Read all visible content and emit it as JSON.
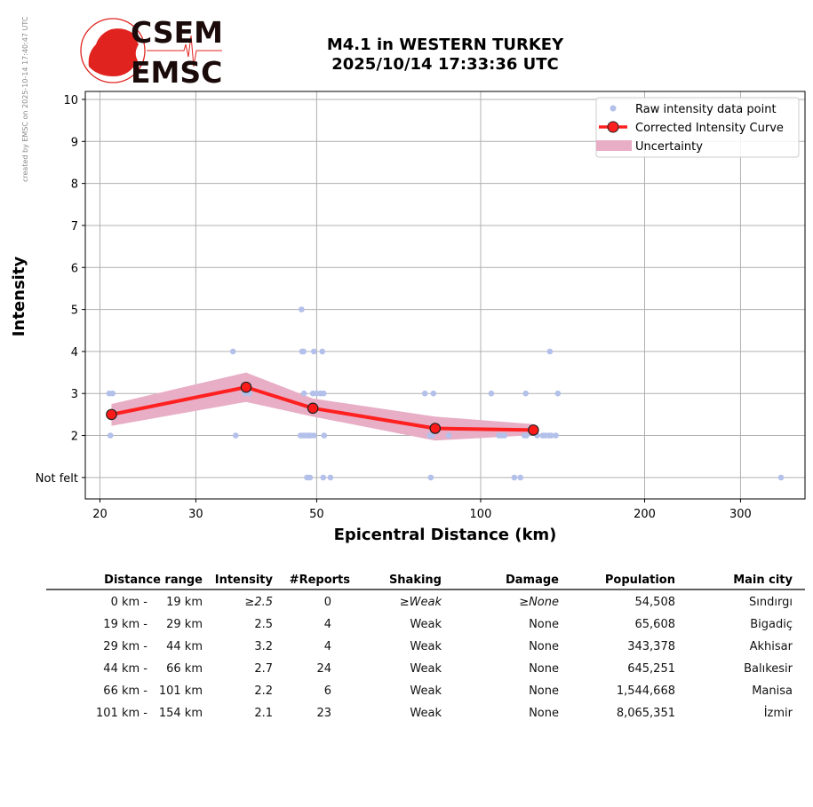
{
  "header": {
    "title_line1": "M4.1 in WESTERN TURKEY",
    "title_line2": "2025/10/14 17:33:36 UTC",
    "logo_text_top": "CSEM",
    "logo_text_bottom": "EMSC",
    "credit": "created by EMSC on 2025-10-14 17:40:47 UTC"
  },
  "colors": {
    "raw": "#b3c0ea",
    "curve": "#ff2020",
    "uncertainty": "#e8aec6",
    "logo": "#e0231f"
  },
  "chart_data": {
    "type": "scatter",
    "xlabel": "Epicentral Distance (km)",
    "ylabel": "Intensity",
    "xscale": "log",
    "xlim": [
      18.8,
      394
    ],
    "ylim": [
      0.49,
      10.19
    ],
    "grid": true,
    "legend_position": "top-right",
    "xticks": [
      {
        "v": 20,
        "label": "20"
      },
      {
        "v": 30,
        "label": "30"
      },
      {
        "v": 50,
        "label": "50"
      },
      {
        "v": 100,
        "label": "100"
      },
      {
        "v": 200,
        "label": "200"
      },
      {
        "v": 300,
        "label": "300"
      }
    ],
    "yticks": [
      {
        "v": 1,
        "label": "Not felt"
      },
      {
        "v": 2,
        "label": "2"
      },
      {
        "v": 3,
        "label": "3"
      },
      {
        "v": 4,
        "label": "4"
      },
      {
        "v": 5,
        "label": "5"
      },
      {
        "v": 6,
        "label": "6"
      },
      {
        "v": 7,
        "label": "7"
      },
      {
        "v": 8,
        "label": "8"
      },
      {
        "v": 9,
        "label": "9"
      },
      {
        "v": 10,
        "label": "10"
      }
    ],
    "legend": {
      "raw": "Raw intensity data point",
      "curve": "Corrected Intensity Curve",
      "uncertainty": "Uncertainty"
    },
    "raw_points": [
      [
        46.9,
        5
      ],
      [
        35.1,
        4
      ],
      [
        47.0,
        4
      ],
      [
        47.3,
        4
      ],
      [
        49.4,
        4
      ],
      [
        51.2,
        4
      ],
      [
        134,
        4
      ],
      [
        20.8,
        3
      ],
      [
        21.1,
        3
      ],
      [
        36.9,
        3
      ],
      [
        37.6,
        3
      ],
      [
        47.4,
        3
      ],
      [
        49.2,
        3
      ],
      [
        50.0,
        3
      ],
      [
        50.8,
        3
      ],
      [
        51.5,
        3
      ],
      [
        79,
        3
      ],
      [
        81.9,
        3
      ],
      [
        104.6,
        3
      ],
      [
        121,
        3
      ],
      [
        138.6,
        3
      ],
      [
        20.9,
        2
      ],
      [
        35.5,
        2
      ],
      [
        46.7,
        2
      ],
      [
        47.3,
        2
      ],
      [
        47.8,
        2
      ],
      [
        48.3,
        2
      ],
      [
        48.7,
        2
      ],
      [
        49.4,
        2
      ],
      [
        51.6,
        2
      ],
      [
        80.6,
        2
      ],
      [
        81.5,
        2
      ],
      [
        87.4,
        2
      ],
      [
        108,
        2
      ],
      [
        109.3,
        2
      ],
      [
        110.6,
        2
      ],
      [
        120.3,
        2
      ],
      [
        121.4,
        2
      ],
      [
        127,
        2
      ],
      [
        130,
        2
      ],
      [
        131.4,
        2
      ],
      [
        133.4,
        2
      ],
      [
        134.8,
        2
      ],
      [
        137.4,
        2
      ],
      [
        48.0,
        1
      ],
      [
        48.6,
        1
      ],
      [
        51.4,
        1
      ],
      [
        53.0,
        1
      ],
      [
        81,
        1
      ],
      [
        115.3,
        1
      ],
      [
        118.3,
        1
      ],
      [
        356,
        1
      ]
    ],
    "curve": {
      "x": [
        21.0,
        37.1,
        49.2,
        82.5,
        125
      ],
      "y": [
        2.5,
        3.15,
        2.65,
        2.17,
        2.13
      ]
    },
    "uncertainty": {
      "x": [
        21.0,
        37.1,
        49.2,
        82.5,
        125
      ],
      "upper": [
        2.75,
        3.5,
        2.88,
        2.45,
        2.27
      ],
      "lower": [
        2.23,
        2.8,
        2.45,
        1.88,
        2.01
      ]
    }
  },
  "table": {
    "headers": [
      "Distance range",
      "Intensity",
      "#Reports",
      "Shaking",
      "Damage",
      "Population",
      "Main city"
    ],
    "rows": [
      {
        "dist_from": "0 km -",
        "dist_to": "19 km",
        "intensity": "≥2.5",
        "reports": "0",
        "shaking": "≥Weak",
        "damage": "≥None",
        "population": "54,508",
        "city": "Sındırgı"
      },
      {
        "dist_from": "19 km -",
        "dist_to": "29 km",
        "intensity": "2.5",
        "reports": "4",
        "shaking": "Weak",
        "damage": "None",
        "population": "65,608",
        "city": "Bigadiç"
      },
      {
        "dist_from": "29 km -",
        "dist_to": "44 km",
        "intensity": "3.2",
        "reports": "4",
        "shaking": "Weak",
        "damage": "None",
        "population": "343,378",
        "city": "Akhisar"
      },
      {
        "dist_from": "44 km -",
        "dist_to": "66 km",
        "intensity": "2.7",
        "reports": "24",
        "shaking": "Weak",
        "damage": "None",
        "population": "645,251",
        "city": "Balıkesir"
      },
      {
        "dist_from": "66 km -",
        "dist_to": "101 km",
        "intensity": "2.2",
        "reports": "6",
        "shaking": "Weak",
        "damage": "None",
        "population": "1,544,668",
        "city": "Manisa"
      },
      {
        "dist_from": "101 km -",
        "dist_to": "154 km",
        "intensity": "2.1",
        "reports": "23",
        "shaking": "Weak",
        "damage": "None",
        "population": "8,065,351",
        "city": "İzmir"
      }
    ]
  }
}
